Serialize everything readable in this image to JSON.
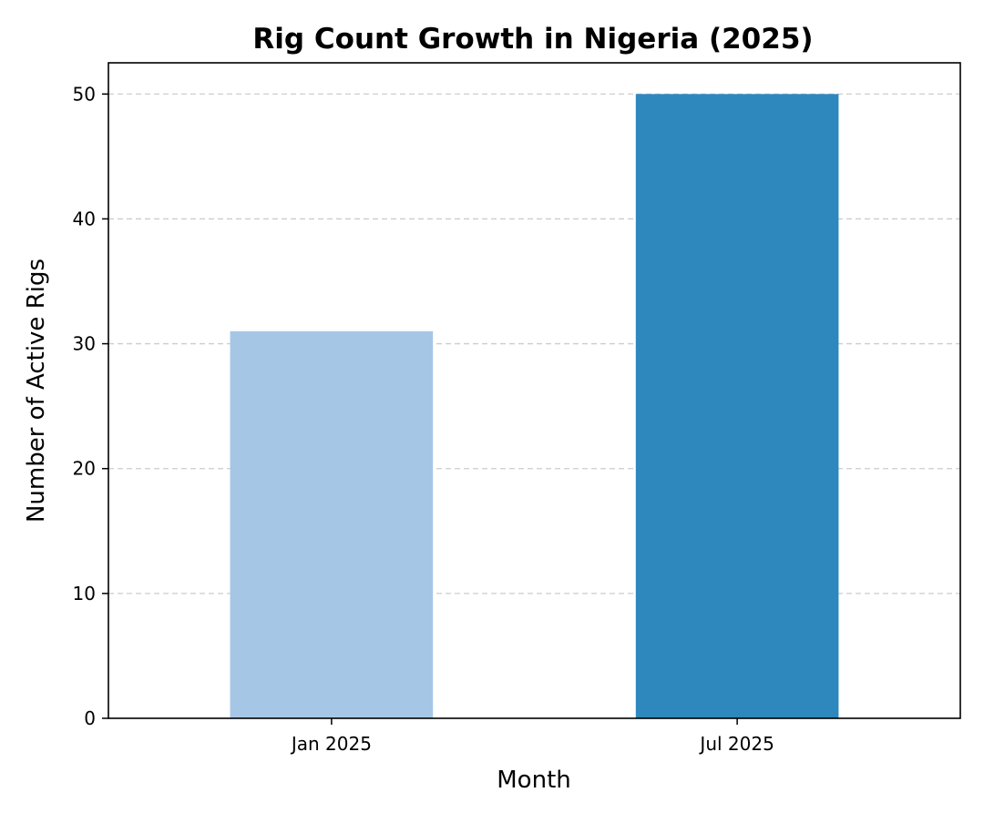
{
  "chart_data": {
    "type": "bar",
    "title": "Rig Count Growth in Nigeria (2025)",
    "xlabel": "Month",
    "ylabel": "Number of Active Rigs",
    "categories": [
      "Jan 2025",
      "Jul 2025"
    ],
    "values": [
      31,
      50
    ],
    "colors": [
      "#a6c6e6",
      "#2e88bd"
    ],
    "ylim": [
      0,
      52.5
    ],
    "yticks": [
      0,
      10,
      20,
      30,
      40,
      50
    ],
    "grid": "y-dashed",
    "legend": "none"
  }
}
